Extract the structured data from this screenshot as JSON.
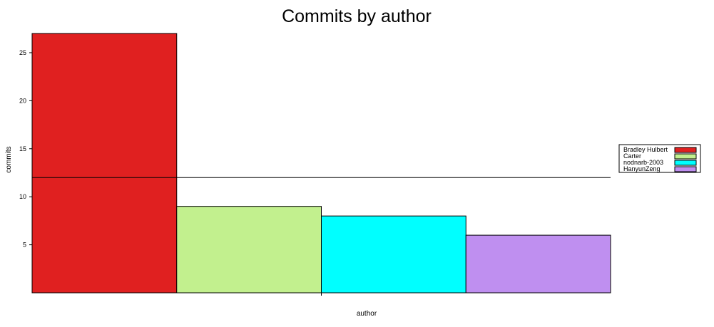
{
  "chart_data": {
    "type": "bar",
    "title": "Commits by author",
    "xlabel": "author",
    "ylabel": "commits",
    "categories": [
      "Bradley Hulbert",
      "Carter",
      "nodnarb-2003",
      "HanyunZeng"
    ],
    "values": [
      27,
      9,
      8,
      6
    ],
    "colors": [
      "#e02020",
      "#c2f08e",
      "#00ffff",
      "#bf8ff0"
    ],
    "ylim": [
      0,
      27
    ],
    "yticks": [
      5,
      10,
      15,
      20,
      25
    ],
    "reference_line": 12,
    "legend": {
      "position": "right",
      "entries": [
        "Bradley Hulbert",
        "Carter",
        "nodnarb-2003",
        "HanyunZeng"
      ]
    },
    "grid": false
  }
}
